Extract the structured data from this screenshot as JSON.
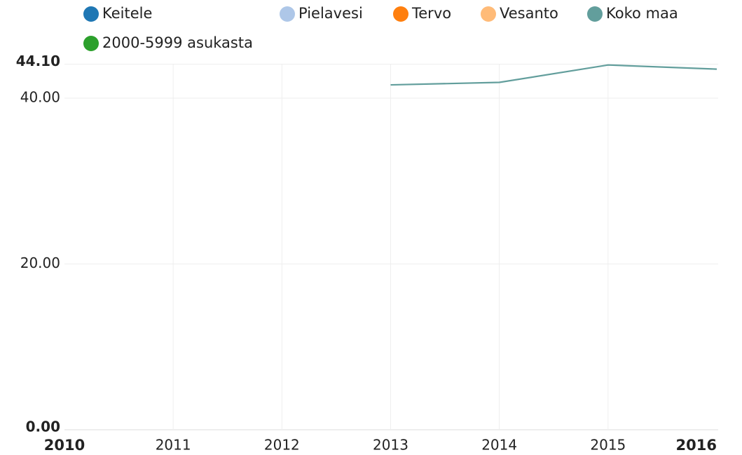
{
  "chart_data": {
    "type": "line",
    "x": [
      2010,
      2011,
      2012,
      2013,
      2014,
      2015,
      2016
    ],
    "series": [
      {
        "name": "Keitele",
        "color": "#1f77b4",
        "values": [
          null,
          null,
          null,
          null,
          null,
          null,
          null
        ]
      },
      {
        "name": "Pielavesi",
        "color": "#aec7e8",
        "values": [
          null,
          null,
          null,
          null,
          null,
          null,
          null
        ]
      },
      {
        "name": "Tervo",
        "color": "#ff7f0e",
        "values": [
          null,
          null,
          null,
          null,
          null,
          null,
          null
        ]
      },
      {
        "name": "Vesanto",
        "color": "#ffbb78",
        "values": [
          null,
          null,
          null,
          null,
          null,
          null,
          null
        ]
      },
      {
        "name": "Koko maa",
        "color": "#629e9c",
        "values": [
          null,
          null,
          null,
          41.6,
          41.9,
          44.0,
          43.5
        ]
      },
      {
        "name": "2000-5999 asukasta",
        "color": "#2ca02c",
        "values": [
          null,
          null,
          null,
          null,
          null,
          null,
          null
        ]
      }
    ],
    "xlim": [
      2010,
      2016
    ],
    "xticks": [
      2010,
      2011,
      2012,
      2013,
      2014,
      2015,
      2016
    ],
    "ylim": [
      0,
      44.1
    ],
    "yticks": [
      {
        "value": 0,
        "label": "0.00"
      },
      {
        "value": 20,
        "label": "20.00"
      },
      {
        "value": 40,
        "label": "40.00"
      },
      {
        "value": 44.1,
        "label": "44.10"
      }
    ],
    "grid": true,
    "legend": "top"
  }
}
